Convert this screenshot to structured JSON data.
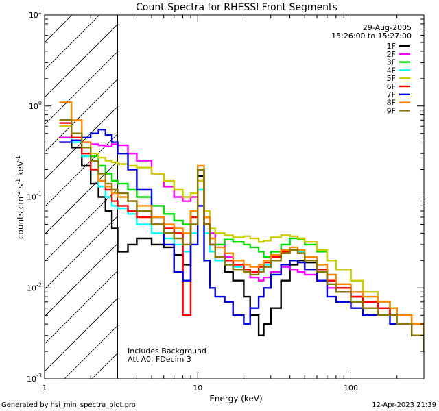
{
  "chart_data": {
    "type": "line",
    "title": "Count Spectra for RHESSI Front Segments",
    "xlabel": "Energy (keV)",
    "ylabel_main": "counts cm",
    "ylabel_parts": [
      "-2",
      " s",
      "-1",
      " keV",
      "-1"
    ],
    "xscale": "log",
    "yscale": "log",
    "xlim": [
      1,
      300
    ],
    "ylim": [
      0.001,
      10
    ],
    "x_ticks": [
      {
        "value": 1,
        "label": "1"
      },
      {
        "value": 10,
        "label": "10"
      },
      {
        "value": 100,
        "label": "100"
      }
    ],
    "y_ticks": [
      {
        "value": 0.001,
        "base": "10",
        "exp": "-3"
      },
      {
        "value": 0.01,
        "base": "10",
        "exp": "-2"
      },
      {
        "value": 0.1,
        "base": "10",
        "exp": "-1"
      },
      {
        "value": 1,
        "base": "10",
        "exp": "0"
      },
      {
        "value": 10,
        "base": "10",
        "exp": "1"
      }
    ],
    "hatched_region": {
      "xmin": 1,
      "xmax": 3
    },
    "date": "29-Aug-2005",
    "time_range": "15:26:00 to 15:27:00",
    "annotations": [
      "Includes Background",
      "Att A0, FDecim 3"
    ],
    "series": [
      {
        "name": "1F",
        "color": "#000000",
        "energy": [
          1.25,
          1.5,
          1.75,
          2.0,
          2.25,
          2.5,
          2.75,
          3.0,
          3.5,
          4.0,
          5.0,
          6.0,
          7.0,
          8.0,
          9.0,
          10.0,
          11.0,
          12.0,
          13.0,
          15.0,
          17.0,
          20.0,
          22.0,
          25.0,
          27.0,
          30.0,
          35.0,
          40.0,
          45.0,
          50.0,
          60.0,
          70.0,
          80.0,
          100.0,
          120.0,
          150.0,
          180.0,
          200.0,
          250.0,
          300.0
        ],
        "counts": [
          0.45,
          0.35,
          0.22,
          0.14,
          0.1,
          0.07,
          0.045,
          0.025,
          0.03,
          0.035,
          0.03,
          0.028,
          0.023,
          0.018,
          0.07,
          0.17,
          0.05,
          0.03,
          0.022,
          0.015,
          0.012,
          0.008,
          0.005,
          0.003,
          0.004,
          0.006,
          0.012,
          0.018,
          0.02,
          0.019,
          0.016,
          0.012,
          0.01,
          0.008,
          0.007,
          0.006,
          0.005,
          0.005,
          0.003,
          0.002
        ]
      },
      {
        "name": "2F",
        "color": "#ff00ff",
        "energy": [
          1.25,
          1.5,
          1.75,
          2.0,
          2.25,
          2.5,
          2.75,
          3.0,
          3.5,
          4.0,
          5.0,
          6.0,
          7.0,
          8.0,
          9.0,
          10.0,
          11.0,
          12.0,
          13.0,
          15.0,
          17.0,
          20.0,
          22.0,
          25.0,
          27.0,
          30.0,
          35.0,
          40.0,
          45.0,
          50.0,
          60.0,
          70.0,
          80.0,
          100.0,
          120.0,
          150.0,
          180.0,
          200.0,
          250.0,
          300.0
        ],
        "counts": [
          0.45,
          0.42,
          0.4,
          0.38,
          0.37,
          0.36,
          0.38,
          0.37,
          0.3,
          0.25,
          0.18,
          0.13,
          0.1,
          0.09,
          0.1,
          0.15,
          0.06,
          0.04,
          0.03,
          0.022,
          0.018,
          0.015,
          0.013,
          0.012,
          0.013,
          0.015,
          0.017,
          0.016,
          0.015,
          0.014,
          0.012,
          0.01,
          0.009,
          0.008,
          0.007,
          0.006,
          0.005,
          0.005,
          0.004,
          0.003
        ]
      },
      {
        "name": "3F",
        "color": "#00dd00",
        "energy": [
          1.25,
          1.5,
          1.75,
          2.0,
          2.25,
          2.5,
          2.75,
          3.0,
          3.5,
          4.0,
          5.0,
          6.0,
          7.0,
          8.0,
          9.0,
          10.0,
          11.0,
          12.0,
          13.0,
          15.0,
          17.0,
          20.0,
          22.0,
          25.0,
          27.0,
          30.0,
          35.0,
          40.0,
          45.0,
          50.0,
          60.0,
          70.0,
          80.0,
          100.0,
          120.0,
          150.0,
          180.0,
          200.0,
          250.0,
          300.0
        ],
        "counts": [
          0.7,
          0.5,
          0.35,
          0.28,
          0.22,
          0.18,
          0.15,
          0.14,
          0.12,
          0.1,
          0.08,
          0.065,
          0.055,
          0.05,
          0.07,
          0.2,
          0.06,
          0.035,
          0.03,
          0.034,
          0.032,
          0.03,
          0.028,
          0.025,
          0.022,
          0.025,
          0.03,
          0.035,
          0.034,
          0.03,
          0.025,
          0.02,
          0.016,
          0.012,
          0.009,
          0.007,
          0.006,
          0.005,
          0.004,
          0.003
        ]
      },
      {
        "name": "4F",
        "color": "#00ffff",
        "energy": [
          1.25,
          1.5,
          1.75,
          2.0,
          2.25,
          2.5,
          2.75,
          3.0,
          3.5,
          4.0,
          5.0,
          6.0,
          7.0,
          8.0,
          9.0,
          10.0,
          11.0,
          12.0,
          13.0,
          15.0,
          17.0,
          20.0,
          22.0,
          25.0,
          27.0,
          30.0,
          35.0,
          40.0,
          45.0,
          50.0,
          60.0,
          70.0,
          80.0,
          100.0,
          120.0,
          150.0,
          180.0,
          200.0,
          250.0,
          300.0
        ],
        "counts": [
          0.6,
          0.4,
          0.28,
          0.2,
          0.13,
          0.1,
          0.08,
          0.075,
          0.065,
          0.05,
          0.04,
          0.035,
          0.03,
          0.025,
          0.04,
          0.12,
          0.04,
          0.025,
          0.02,
          0.018,
          0.017,
          0.016,
          0.015,
          0.016,
          0.018,
          0.022,
          0.025,
          0.026,
          0.025,
          0.022,
          0.018,
          0.014,
          0.011,
          0.009,
          0.008,
          0.007,
          0.006,
          0.005,
          0.004,
          0.003
        ]
      },
      {
        "name": "5F",
        "color": "#cccc00",
        "energy": [
          1.25,
          1.5,
          1.75,
          2.0,
          2.25,
          2.5,
          2.75,
          3.0,
          3.5,
          4.0,
          5.0,
          6.0,
          7.0,
          8.0,
          9.0,
          10.0,
          11.0,
          12.0,
          13.0,
          15.0,
          17.0,
          20.0,
          22.0,
          25.0,
          27.0,
          30.0,
          35.0,
          40.0,
          45.0,
          50.0,
          60.0,
          70.0,
          80.0,
          100.0,
          120.0,
          150.0,
          180.0,
          200.0,
          250.0,
          300.0
        ],
        "counts": [
          0.6,
          0.45,
          0.35,
          0.3,
          0.27,
          0.25,
          0.24,
          0.23,
          0.22,
          0.21,
          0.18,
          0.15,
          0.12,
          0.1,
          0.11,
          0.15,
          0.07,
          0.045,
          0.04,
          0.038,
          0.036,
          0.037,
          0.035,
          0.032,
          0.033,
          0.036,
          0.038,
          0.037,
          0.035,
          0.032,
          0.026,
          0.02,
          0.016,
          0.012,
          0.009,
          0.007,
          0.006,
          0.005,
          0.004,
          0.003
        ]
      },
      {
        "name": "6F",
        "color": "#ff0000",
        "energy": [
          1.25,
          1.5,
          1.75,
          2.0,
          2.25,
          2.5,
          2.75,
          3.0,
          3.5,
          4.0,
          5.0,
          6.0,
          7.0,
          8.0,
          9.0,
          10.0,
          11.0,
          12.0,
          13.0,
          15.0,
          17.0,
          20.0,
          22.0,
          25.0,
          27.0,
          30.0,
          35.0,
          40.0,
          45.0,
          50.0,
          60.0,
          70.0,
          80.0,
          100.0,
          120.0,
          150.0,
          180.0,
          200.0,
          250.0,
          300.0
        ],
        "counts": [
          0.65,
          0.45,
          0.3,
          0.2,
          0.15,
          0.12,
          0.09,
          0.08,
          0.07,
          0.06,
          0.05,
          0.045,
          0.04,
          0.005,
          0.06,
          0.2,
          0.05,
          0.03,
          0.022,
          0.02,
          0.018,
          0.016,
          0.015,
          0.017,
          0.019,
          0.022,
          0.025,
          0.026,
          0.024,
          0.02,
          0.016,
          0.012,
          0.01,
          0.008,
          0.007,
          0.006,
          0.005,
          0.005,
          0.004,
          0.003
        ]
      },
      {
        "name": "7F",
        "color": "#0000dd",
        "energy": [
          1.25,
          1.5,
          1.75,
          2.0,
          2.25,
          2.5,
          2.75,
          3.0,
          3.5,
          4.0,
          5.0,
          6.0,
          7.0,
          8.0,
          9.0,
          10.0,
          11.0,
          12.0,
          13.0,
          15.0,
          17.0,
          20.0,
          22.0,
          25.0,
          27.0,
          30.0,
          35.0,
          40.0,
          45.0,
          50.0,
          60.0,
          70.0,
          80.0,
          100.0,
          120.0,
          150.0,
          180.0,
          200.0,
          250.0,
          300.0
        ],
        "counts": [
          0.4,
          0.42,
          0.45,
          0.5,
          0.55,
          0.48,
          0.4,
          0.3,
          0.2,
          0.12,
          0.06,
          0.03,
          0.015,
          0.012,
          0.03,
          0.08,
          0.02,
          0.01,
          0.008,
          0.007,
          0.005,
          0.004,
          0.006,
          0.008,
          0.01,
          0.014,
          0.018,
          0.02,
          0.019,
          0.016,
          0.012,
          0.008,
          0.007,
          0.006,
          0.005,
          0.005,
          0.004,
          0.004,
          0.003,
          0.002
        ]
      },
      {
        "name": "8F",
        "color": "#ff8800",
        "energy": [
          1.25,
          1.5,
          1.75,
          2.0,
          2.25,
          2.5,
          2.75,
          3.0,
          3.5,
          4.0,
          5.0,
          6.0,
          7.0,
          8.0,
          9.0,
          10.0,
          11.0,
          12.0,
          13.0,
          15.0,
          17.0,
          20.0,
          22.0,
          25.0,
          27.0,
          30.0,
          35.0,
          40.0,
          45.0,
          50.0,
          60.0,
          70.0,
          80.0,
          100.0,
          120.0,
          150.0,
          180.0,
          200.0,
          250.0,
          300.0
        ],
        "counts": [
          1.1,
          0.7,
          0.4,
          0.25,
          0.15,
          0.13,
          0.11,
          0.1,
          0.09,
          0.08,
          0.06,
          0.05,
          0.045,
          0.04,
          0.07,
          0.22,
          0.06,
          0.035,
          0.028,
          0.024,
          0.02,
          0.018,
          0.017,
          0.018,
          0.02,
          0.023,
          0.026,
          0.028,
          0.026,
          0.022,
          0.018,
          0.014,
          0.011,
          0.009,
          0.008,
          0.007,
          0.006,
          0.005,
          0.004,
          0.003
        ]
      },
      {
        "name": "9F",
        "color": "#887700",
        "energy": [
          1.25,
          1.5,
          1.75,
          2.0,
          2.25,
          2.5,
          2.75,
          3.0,
          3.5,
          4.0,
          5.0,
          6.0,
          7.0,
          8.0,
          9.0,
          10.0,
          11.0,
          12.0,
          13.0,
          15.0,
          17.0,
          20.0,
          22.0,
          25.0,
          27.0,
          30.0,
          35.0,
          40.0,
          45.0,
          50.0,
          60.0,
          70.0,
          80.0,
          100.0,
          120.0,
          150.0,
          180.0,
          200.0,
          250.0,
          300.0
        ],
        "counts": [
          0.7,
          0.5,
          0.35,
          0.25,
          0.18,
          0.14,
          0.12,
          0.11,
          0.09,
          0.07,
          0.05,
          0.04,
          0.035,
          0.03,
          0.05,
          0.2,
          0.05,
          0.03,
          0.022,
          0.018,
          0.016,
          0.015,
          0.014,
          0.015,
          0.017,
          0.02,
          0.024,
          0.026,
          0.024,
          0.02,
          0.015,
          0.011,
          0.009,
          0.007,
          0.006,
          0.005,
          0.005,
          0.004,
          0.003,
          0.002
        ]
      }
    ]
  },
  "footer": {
    "generated_by": "Generated by hsi_min_spectra_plot.pro",
    "timestamp": "12-Apr-2023 21:39"
  }
}
